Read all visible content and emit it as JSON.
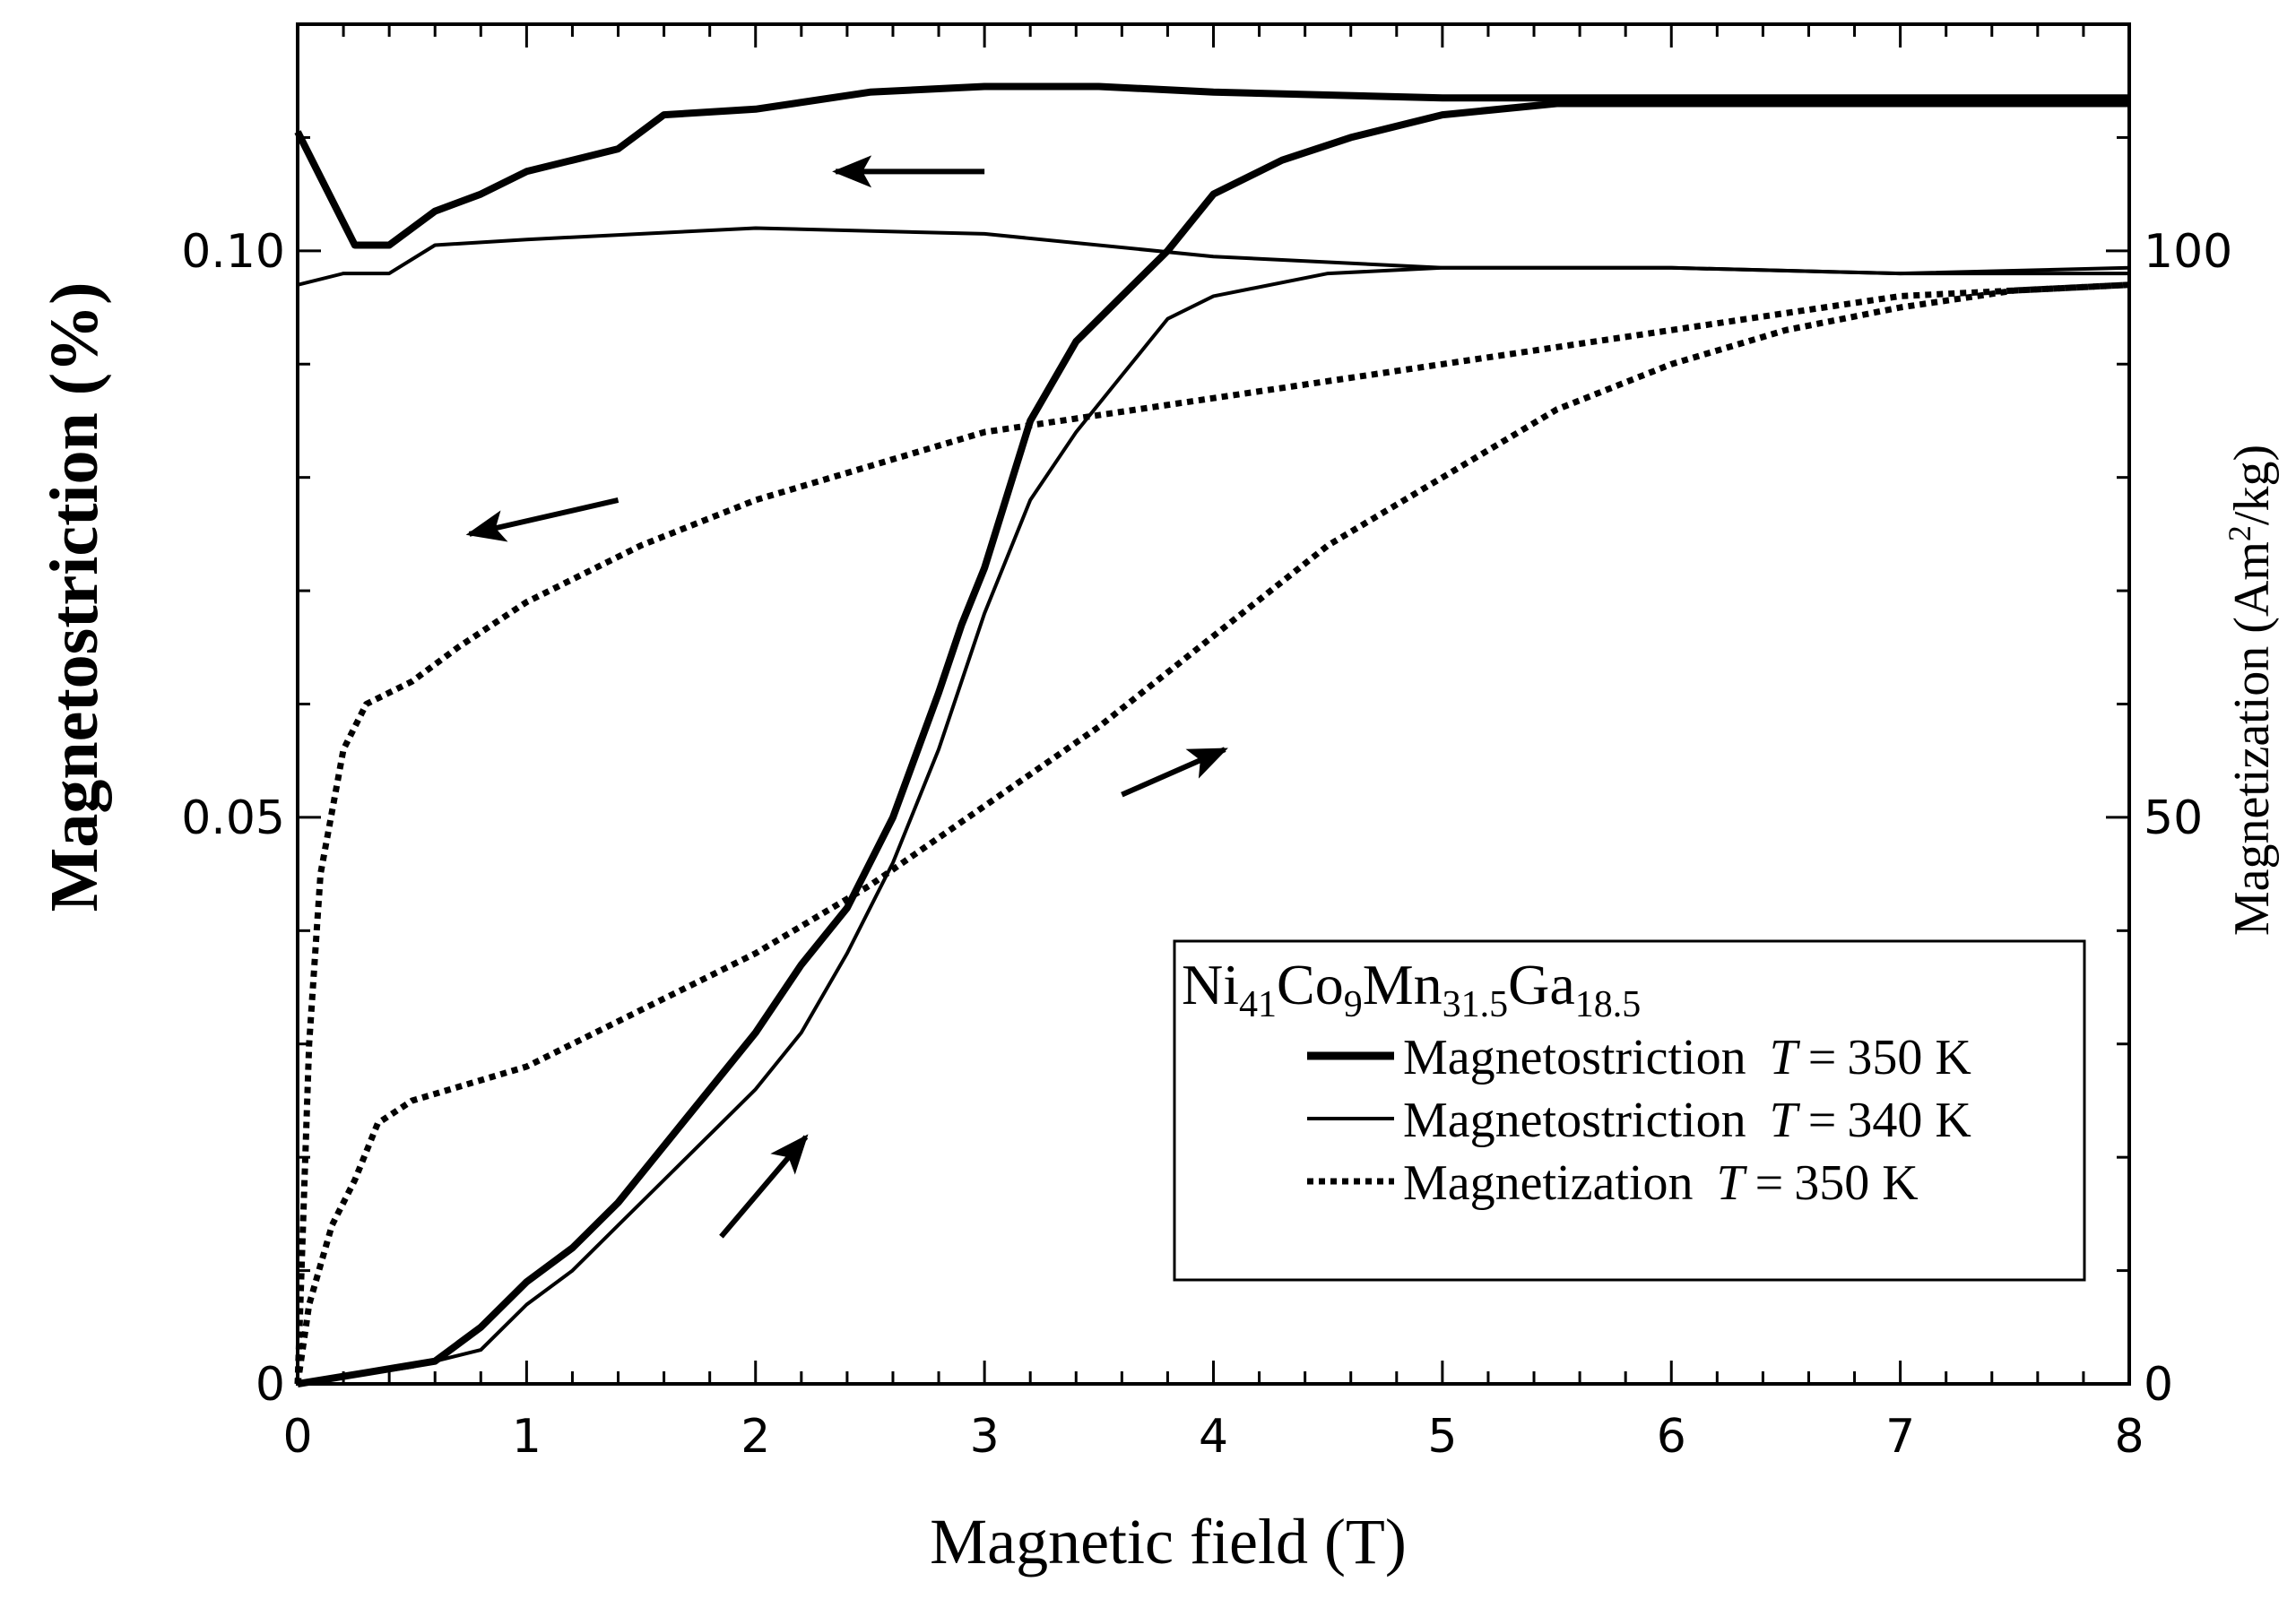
{
  "chart_data": {
    "type": "line",
    "title": "",
    "xlabel": "Magnetic field (T)",
    "ylabel": "Magnetostriction (%)",
    "ylabel_right": "Magnetization (Am2/kg)",
    "ylabel_right_parts": {
      "pre": "Magnetization (Am",
      "sup": "2",
      "post": "/kg)"
    },
    "xlim": [
      0,
      8
    ],
    "ylim": [
      0,
      0.12
    ],
    "ylim_right": [
      0,
      120
    ],
    "xticks": [
      "0",
      "1",
      "2",
      "3",
      "4",
      "5",
      "6",
      "7",
      "8"
    ],
    "yticks_left": [
      {
        "value": 0,
        "label": "0"
      },
      {
        "value": 0.05,
        "label": "0.05"
      },
      {
        "value": 0.1,
        "label": "0.10"
      }
    ],
    "yticks_right": [
      {
        "value": 0,
        "label": "0"
      },
      {
        "value": 50,
        "label": "50"
      },
      {
        "value": 100,
        "label": "100"
      }
    ],
    "legend": {
      "position": "bottom-right",
      "title": "Ni41Co9Mn31.5Ga18.5",
      "title_parts": [
        {
          "t": "Ni",
          "s": "41"
        },
        {
          "t": "Co",
          "s": "9"
        },
        {
          "t": "Mn",
          "s": "31.5"
        },
        {
          "t": "Ga",
          "s": "18.5"
        }
      ],
      "entries": [
        {
          "label": "Magnetostriction",
          "temp": "350 K",
          "t_symbol": "T",
          "style": "thick"
        },
        {
          "label": "Magnetostriction",
          "temp": "340 K",
          "t_symbol": "T",
          "style": "thin"
        },
        {
          "label": "Magnetization",
          "temp": "350 K",
          "t_symbol": "T",
          "style": "dotted"
        }
      ]
    },
    "series": [
      {
        "name": "Magnetostriction T = 350 K (up)",
        "axis": "left",
        "style": "thick",
        "x": [
          0,
          0.3,
          0.6,
          0.8,
          1.0,
          1.2,
          1.4,
          1.6,
          1.8,
          2.0,
          2.2,
          2.4,
          2.6,
          2.8,
          2.9,
          3.0,
          3.2,
          3.4,
          3.6,
          3.8,
          4.0,
          4.3,
          4.6,
          5.0,
          5.5,
          6.0,
          7.0,
          8.0
        ],
        "y": [
          0,
          0.001,
          0.002,
          0.005,
          0.009,
          0.012,
          0.016,
          0.021,
          0.026,
          0.031,
          0.037,
          0.042,
          0.05,
          0.061,
          0.067,
          0.072,
          0.085,
          0.092,
          0.096,
          0.1,
          0.105,
          0.108,
          0.11,
          0.112,
          0.113,
          0.113,
          0.113,
          0.113
        ]
      },
      {
        "name": "Magnetostriction T = 350 K (down)",
        "axis": "left",
        "style": "thick",
        "x": [
          8.0,
          7.0,
          6.0,
          5.0,
          4.0,
          3.5,
          3.0,
          2.5,
          2.0,
          1.6,
          1.4,
          1.2,
          1.0,
          0.8,
          0.6,
          0.4,
          0.25,
          0.1,
          0
        ],
        "y": [
          0.1135,
          0.1135,
          0.1135,
          0.1135,
          0.114,
          0.1145,
          0.1145,
          0.114,
          0.1125,
          0.112,
          0.109,
          0.108,
          0.107,
          0.105,
          0.1035,
          0.1005,
          0.1005,
          0.1065,
          0.1105
        ]
      },
      {
        "name": "Magnetostriction T = 340 K (up)",
        "axis": "left",
        "style": "thin",
        "x": [
          0,
          0.5,
          0.8,
          1.0,
          1.2,
          1.4,
          1.6,
          1.8,
          2.0,
          2.2,
          2.4,
          2.6,
          2.8,
          3.0,
          3.2,
          3.4,
          3.6,
          3.8,
          4.0,
          4.5,
          5.0,
          6.0,
          7.0,
          8.0
        ],
        "y": [
          0,
          0.0015,
          0.003,
          0.007,
          0.01,
          0.014,
          0.018,
          0.022,
          0.026,
          0.031,
          0.038,
          0.046,
          0.056,
          0.068,
          0.078,
          0.084,
          0.089,
          0.094,
          0.096,
          0.098,
          0.0985,
          0.0985,
          0.098,
          0.098
        ]
      },
      {
        "name": "Magnetostriction T = 340 K (down)",
        "axis": "left",
        "style": "thin",
        "x": [
          8.0,
          7.0,
          6.0,
          5.0,
          4.0,
          3.0,
          2.0,
          1.0,
          0.6,
          0.4,
          0.2,
          0
        ],
        "y": [
          0.0985,
          0.098,
          0.0985,
          0.0985,
          0.0995,
          0.1015,
          0.102,
          0.101,
          0.1005,
          0.098,
          0.098,
          0.097
        ]
      },
      {
        "name": "Magnetization T = 350 K (up)",
        "axis": "right",
        "style": "dotted",
        "x": [
          0,
          0.05,
          0.15,
          0.25,
          0.35,
          0.5,
          1.0,
          1.5,
          2.0,
          2.5,
          3.0,
          3.5,
          4.0,
          4.5,
          5.0,
          5.5,
          6.0,
          6.5,
          7.0,
          7.5,
          8.0
        ],
        "y": [
          0,
          7,
          14,
          18,
          23,
          25,
          28,
          33,
          38,
          44,
          51,
          58,
          66,
          74,
          80,
          86,
          90,
          93,
          95,
          96.5,
          97
        ]
      },
      {
        "name": "Magnetization T = 350 K (down)",
        "axis": "right",
        "style": "dotted",
        "x": [
          8.0,
          7.0,
          6.0,
          5.0,
          4.0,
          3.0,
          2.0,
          1.5,
          1.0,
          0.7,
          0.5,
          0.3,
          0.2,
          0.1,
          0.05,
          0
        ],
        "y": [
          97,
          96,
          93,
          90,
          87,
          84,
          78,
          74,
          69,
          65,
          62,
          60,
          56,
          45,
          30,
          0
        ]
      }
    ],
    "annotations": [
      {
        "type": "arrow",
        "meaning": "thick magnetostriction decreasing field"
      },
      {
        "type": "arrow",
        "meaning": "magnetization decreasing field"
      },
      {
        "type": "arrow",
        "meaning": "magnetization increasing field"
      },
      {
        "type": "arrow",
        "meaning": "magnetostriction increasing field"
      }
    ]
  }
}
